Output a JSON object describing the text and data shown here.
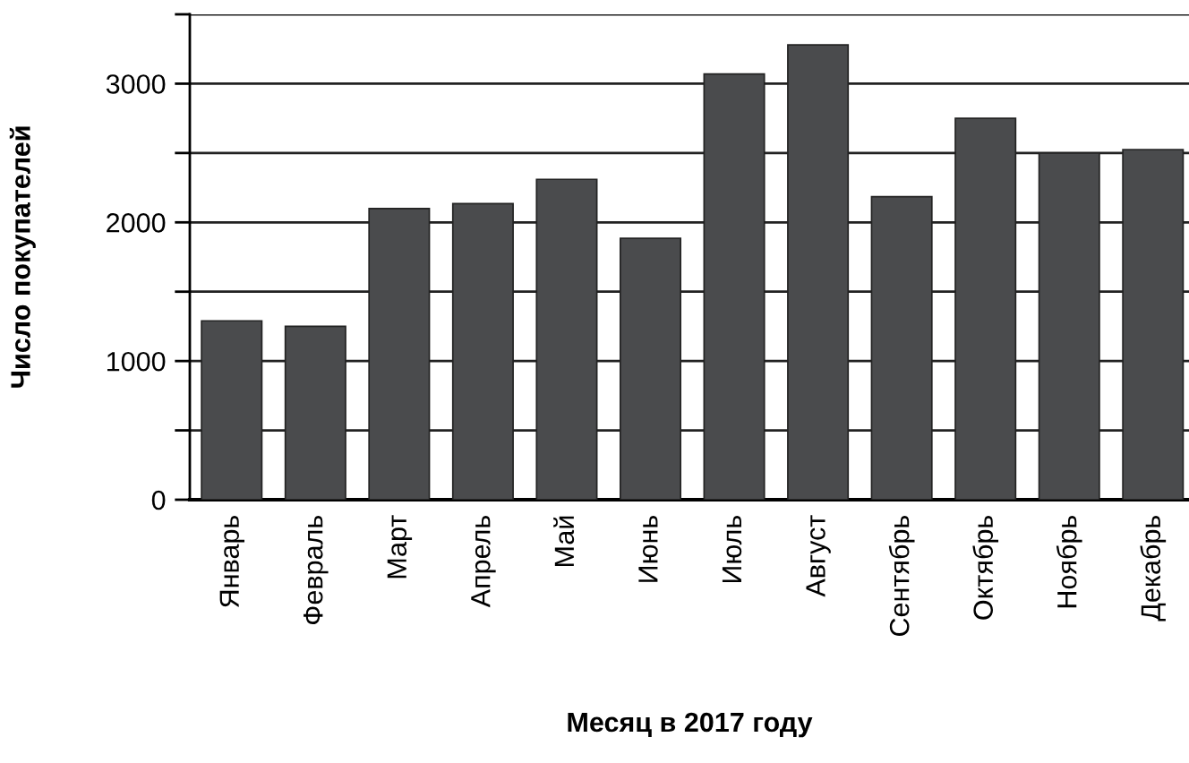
{
  "chart_data": {
    "type": "bar",
    "xlabel": "Месяц в 2017 году",
    "ylabel": "Число покупателей",
    "categories": [
      "Январь",
      "Февраль",
      "Март",
      "Апрель",
      "Май",
      "Июнь",
      "Июль",
      "Август",
      "Сентябрь",
      "Октябрь",
      "Ноябрь",
      "Декабрь"
    ],
    "values": [
      1290,
      1250,
      2100,
      2135,
      2310,
      1885,
      3070,
      3280,
      2185,
      2750,
      2500,
      2525
    ],
    "color": "#4a4b4d",
    "ylim": [
      0,
      3500
    ],
    "yticks": [
      0,
      {
        "value": 500,
        "label": null
      },
      1000,
      {
        "value": 1500,
        "label": null
      },
      2000,
      {
        "value": 2500,
        "label": null
      },
      3000,
      {
        "value": 3500,
        "label": null
      }
    ],
    "grid": "y"
  }
}
